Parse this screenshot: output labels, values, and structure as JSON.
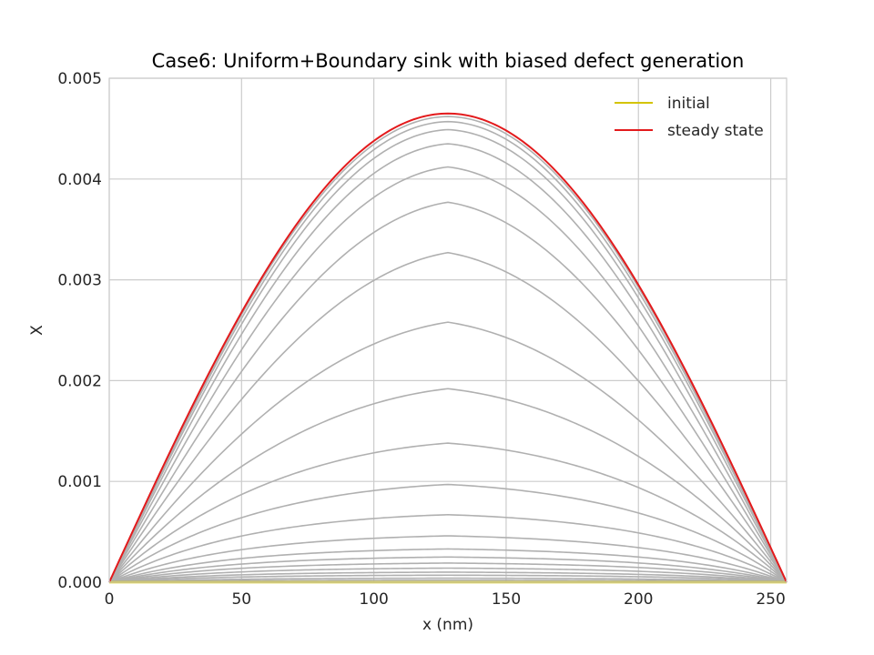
{
  "chart_data": {
    "type": "line",
    "title": "Case6: Uniform+Boundary sink with biased defect generation",
    "xlabel": "x (nm)",
    "ylabel": "X",
    "xlim": [
      0,
      256
    ],
    "ylim": [
      0,
      0.005
    ],
    "xticks": [
      0,
      50,
      100,
      150,
      200,
      250
    ],
    "xtick_labels": [
      "0",
      "50",
      "100",
      "150",
      "200",
      "250"
    ],
    "yticks": [
      0,
      0.001,
      0.002,
      0.003,
      0.004,
      0.005
    ],
    "ytick_labels": [
      "0.000",
      "0.001",
      "0.002",
      "0.003",
      "0.004",
      "0.005"
    ],
    "grid": true,
    "legend_position": "top-right",
    "legend": [
      {
        "label": "initial",
        "color": "#d4c400"
      },
      {
        "label": "steady state",
        "color": "#e31a1c"
      }
    ],
    "colors": {
      "initial": "#d4c400",
      "steady": "#e31a1c",
      "transient": "#b0b0b0"
    },
    "curve_model": "profile peaks at x = 128, rises to plateau within about 40/(1 - p) nm of each boundary, p = peak / 0.00465",
    "series": [
      {
        "name": "initial",
        "peak": 0.0,
        "color": "#d4c400"
      },
      {
        "peak": 2e-05,
        "color": "#b0b0b0"
      },
      {
        "peak": 4e-05,
        "color": "#b0b0b0"
      },
      {
        "peak": 7e-05,
        "color": "#b0b0b0"
      },
      {
        "peak": 0.0001,
        "color": "#b0b0b0"
      },
      {
        "peak": 0.00014,
        "color": "#b0b0b0"
      },
      {
        "peak": 0.00019,
        "color": "#b0b0b0"
      },
      {
        "peak": 0.00025,
        "color": "#b0b0b0"
      },
      {
        "peak": 0.00033,
        "color": "#b0b0b0"
      },
      {
        "peak": 0.00046,
        "color": "#b0b0b0"
      },
      {
        "peak": 0.00067,
        "color": "#b0b0b0"
      },
      {
        "peak": 0.00097,
        "color": "#b0b0b0"
      },
      {
        "peak": 0.00138,
        "color": "#b0b0b0"
      },
      {
        "peak": 0.00192,
        "color": "#b0b0b0"
      },
      {
        "peak": 0.00258,
        "color": "#b0b0b0"
      },
      {
        "peak": 0.00327,
        "color": "#b0b0b0"
      },
      {
        "peak": 0.00377,
        "color": "#b0b0b0"
      },
      {
        "peak": 0.00412,
        "color": "#b0b0b0"
      },
      {
        "peak": 0.00435,
        "color": "#b0b0b0"
      },
      {
        "peak": 0.00449,
        "color": "#b0b0b0"
      },
      {
        "peak": 0.00457,
        "color": "#b0b0b0"
      },
      {
        "peak": 0.00462,
        "color": "#b0b0b0"
      },
      {
        "name": "steady state",
        "peak": 0.00465,
        "color": "#e31a1c"
      }
    ]
  }
}
